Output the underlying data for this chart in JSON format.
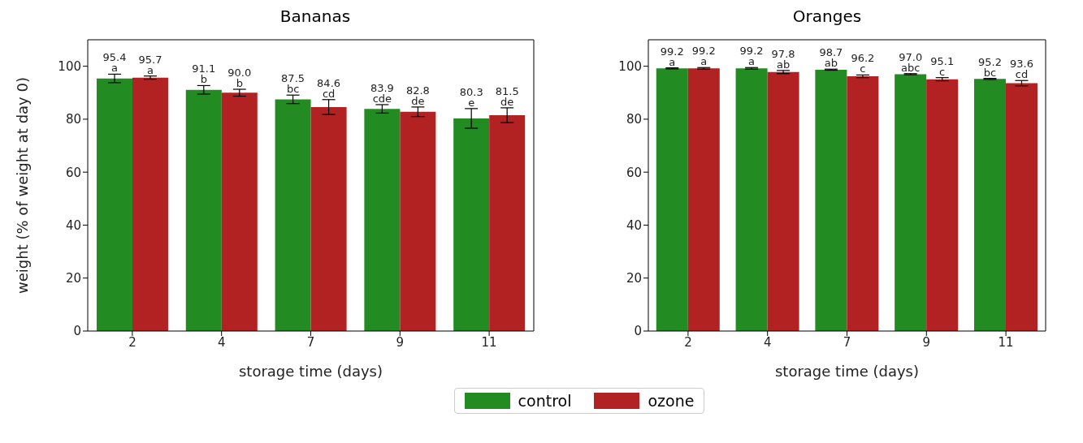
{
  "chart_data": [
    {
      "type": "bar",
      "title": "Bananas",
      "xlabel": "storage time (days)",
      "ylabel": "weight (% of weight at day 0)",
      "categories": [
        "2",
        "4",
        "7",
        "9",
        "11"
      ],
      "ylim": [
        0,
        110
      ],
      "yticks": [
        0,
        20,
        40,
        60,
        80,
        100
      ],
      "legend": "bottom",
      "series": [
        {
          "name": "control",
          "color": "#228b22",
          "values": [
            95.4,
            91.1,
            87.5,
            83.9,
            80.3
          ],
          "errors": [
            1.6,
            1.6,
            1.6,
            1.6,
            3.7
          ],
          "value_labels": [
            "95.4\na",
            "91.1\nb",
            "87.5\nbc",
            "83.9\ncde",
            "80.3\ne"
          ]
        },
        {
          "name": "ozone",
          "color": "#b22222",
          "values": [
            95.7,
            90.0,
            84.6,
            82.8,
            81.5
          ],
          "errors": [
            0.6,
            1.3,
            2.8,
            1.8,
            2.8
          ],
          "value_labels": [
            "95.7\na",
            "90.0\nb",
            "84.6\ncd",
            "82.8\nde",
            "81.5\nde"
          ]
        }
      ]
    },
    {
      "type": "bar",
      "title": "Oranges",
      "xlabel": "storage time (days)",
      "categories": [
        "2",
        "4",
        "7",
        "9",
        "11"
      ],
      "ylim": [
        0,
        110
      ],
      "yticks": [
        0,
        20,
        40,
        60,
        80,
        100
      ],
      "series": [
        {
          "color": "#228b22",
          "values": [
            99.2,
            99.2,
            98.7,
            97.0,
            95.2
          ],
          "errors": [
            0.2,
            0.3,
            0.2,
            0.2,
            0.2
          ],
          "value_labels": [
            "99.2\na",
            "99.2\na",
            "98.7\nab",
            "97.0\nabc",
            "95.2\nbc"
          ]
        },
        {
          "color": "#b22222",
          "values": [
            99.2,
            97.8,
            96.2,
            95.1,
            93.6
          ],
          "errors": [
            0.3,
            0.6,
            0.5,
            0.6,
            1.0
          ],
          "value_labels": [
            "99.2\na",
            "97.8\nab",
            "96.2\nc",
            "95.1\nc",
            "93.6\ncd"
          ]
        }
      ]
    }
  ]
}
